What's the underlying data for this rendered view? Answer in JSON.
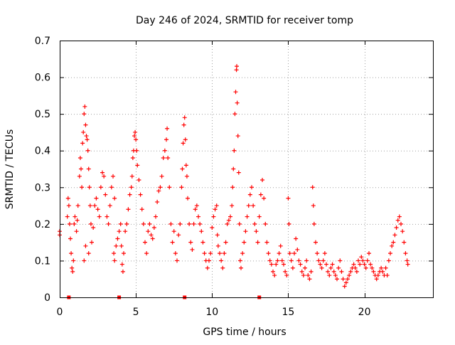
{
  "chart_data": {
    "type": "scatter",
    "title": "Day 246 of 2024, SRMTID for receiver tomp",
    "xlabel": "GPS time / hours",
    "ylabel": "SRMTID / TECUs",
    "xlim": [
      0,
      24.5
    ],
    "ylim": [
      0,
      0.7
    ],
    "x_ticks": [
      0,
      5,
      10,
      15,
      20
    ],
    "y_ticks": [
      0,
      0.1,
      0.2,
      0.3,
      0.4,
      0.5,
      0.6,
      0.7
    ],
    "x_tick_labels": [
      "0",
      "5",
      "10",
      "15",
      "20"
    ],
    "y_tick_labels": [
      "0",
      "0.1",
      "0.2",
      "0.3",
      "0.4",
      "0.5",
      "0.6",
      "0.7"
    ],
    "grid": true,
    "marker": "plus",
    "color": "#ff0000",
    "series": [
      {
        "name": "SRMTID",
        "points": [
          [
            0.0,
            0.18
          ],
          [
            0.0,
            0.17
          ],
          [
            0.5,
            0.22
          ],
          [
            0.55,
            0.27
          ],
          [
            0.6,
            0.25
          ],
          [
            0.65,
            0.2
          ],
          [
            0.7,
            0.16
          ],
          [
            0.75,
            0.12
          ],
          [
            0.8,
            0.08
          ],
          [
            0.85,
            0.07
          ],
          [
            0.9,
            0.1
          ],
          [
            0.95,
            0.2
          ],
          [
            1.0,
            0.22
          ],
          [
            1.1,
            0.18
          ],
          [
            1.15,
            0.21
          ],
          [
            1.2,
            0.25
          ],
          [
            1.3,
            0.33
          ],
          [
            1.35,
            0.38
          ],
          [
            1.4,
            0.35
          ],
          [
            1.45,
            0.3
          ],
          [
            1.5,
            0.42
          ],
          [
            1.55,
            0.45
          ],
          [
            1.6,
            0.5
          ],
          [
            1.65,
            0.52
          ],
          [
            1.7,
            0.47
          ],
          [
            1.75,
            0.44
          ],
          [
            1.8,
            0.43
          ],
          [
            1.85,
            0.4
          ],
          [
            1.9,
            0.35
          ],
          [
            1.95,
            0.3
          ],
          [
            2.0,
            0.25
          ],
          [
            1.6,
            0.1
          ],
          [
            1.7,
            0.14
          ],
          [
            1.9,
            0.12
          ],
          [
            2.05,
            0.2
          ],
          [
            2.1,
            0.15
          ],
          [
            2.2,
            0.19
          ],
          [
            2.3,
            0.25
          ],
          [
            2.4,
            0.27
          ],
          [
            2.5,
            0.24
          ],
          [
            2.6,
            0.22
          ],
          [
            2.7,
            0.3
          ],
          [
            2.8,
            0.34
          ],
          [
            2.9,
            0.33
          ],
          [
            3.0,
            0.28
          ],
          [
            3.1,
            0.22
          ],
          [
            3.2,
            0.2
          ],
          [
            3.3,
            0.25
          ],
          [
            3.4,
            0.3
          ],
          [
            3.5,
            0.33
          ],
          [
            3.6,
            0.27
          ],
          [
            3.55,
            0.12
          ],
          [
            3.6,
            0.1
          ],
          [
            3.7,
            0.14
          ],
          [
            3.8,
            0.16
          ],
          [
            3.9,
            0.18
          ],
          [
            4.0,
            0.2
          ],
          [
            4.05,
            0.14
          ],
          [
            4.1,
            0.09
          ],
          [
            4.15,
            0.07
          ],
          [
            4.2,
            0.12
          ],
          [
            4.3,
            0.18
          ],
          [
            4.4,
            0.2
          ],
          [
            4.5,
            0.24
          ],
          [
            4.6,
            0.28
          ],
          [
            4.7,
            0.3
          ],
          [
            4.75,
            0.33
          ],
          [
            4.8,
            0.38
          ],
          [
            4.85,
            0.4
          ],
          [
            4.9,
            0.44
          ],
          [
            4.95,
            0.45
          ],
          [
            5.0,
            0.43
          ],
          [
            5.05,
            0.4
          ],
          [
            5.1,
            0.36
          ],
          [
            5.2,
            0.32
          ],
          [
            5.3,
            0.28
          ],
          [
            5.4,
            0.24
          ],
          [
            5.5,
            0.2
          ],
          [
            5.6,
            0.15
          ],
          [
            5.7,
            0.12
          ],
          [
            5.8,
            0.18
          ],
          [
            5.9,
            0.2
          ],
          [
            6.0,
            0.17
          ],
          [
            6.1,
            0.16
          ],
          [
            6.2,
            0.19
          ],
          [
            6.3,
            0.22
          ],
          [
            6.4,
            0.26
          ],
          [
            6.5,
            0.29
          ],
          [
            6.6,
            0.3
          ],
          [
            6.7,
            0.33
          ],
          [
            6.8,
            0.38
          ],
          [
            6.9,
            0.4
          ],
          [
            7.0,
            0.43
          ],
          [
            7.05,
            0.46
          ],
          [
            7.1,
            0.38
          ],
          [
            7.2,
            0.3
          ],
          [
            7.3,
            0.2
          ],
          [
            7.4,
            0.15
          ],
          [
            7.5,
            0.18
          ],
          [
            7.6,
            0.12
          ],
          [
            7.7,
            0.1
          ],
          [
            7.8,
            0.17
          ],
          [
            7.9,
            0.2
          ],
          [
            8.0,
            0.3
          ],
          [
            8.05,
            0.35
          ],
          [
            8.1,
            0.42
          ],
          [
            8.15,
            0.47
          ],
          [
            8.2,
            0.49
          ],
          [
            8.25,
            0.43
          ],
          [
            8.3,
            0.36
          ],
          [
            8.35,
            0.33
          ],
          [
            8.4,
            0.27
          ],
          [
            8.5,
            0.2
          ],
          [
            8.6,
            0.15
          ],
          [
            8.7,
            0.13
          ],
          [
            8.8,
            0.2
          ],
          [
            8.9,
            0.24
          ],
          [
            9.0,
            0.25
          ],
          [
            9.1,
            0.22
          ],
          [
            9.2,
            0.2
          ],
          [
            9.3,
            0.18
          ],
          [
            9.4,
            0.15
          ],
          [
            9.5,
            0.12
          ],
          [
            9.6,
            0.1
          ],
          [
            9.7,
            0.08
          ],
          [
            9.8,
            0.1
          ],
          [
            9.9,
            0.12
          ],
          [
            10.0,
            0.19
          ],
          [
            10.1,
            0.22
          ],
          [
            10.2,
            0.24
          ],
          [
            10.3,
            0.25
          ],
          [
            10.35,
            0.17
          ],
          [
            10.4,
            0.14
          ],
          [
            10.5,
            0.12
          ],
          [
            10.6,
            0.1
          ],
          [
            10.7,
            0.08
          ],
          [
            10.8,
            0.12
          ],
          [
            10.9,
            0.15
          ],
          [
            11.0,
            0.2
          ],
          [
            11.1,
            0.21
          ],
          [
            11.2,
            0.22
          ],
          [
            11.3,
            0.25
          ],
          [
            11.35,
            0.3
          ],
          [
            11.4,
            0.35
          ],
          [
            11.45,
            0.4
          ],
          [
            11.5,
            0.5
          ],
          [
            11.55,
            0.56
          ],
          [
            11.6,
            0.62
          ],
          [
            11.62,
            0.63
          ],
          [
            11.65,
            0.53
          ],
          [
            11.7,
            0.44
          ],
          [
            11.75,
            0.34
          ],
          [
            11.8,
            0.2
          ],
          [
            11.85,
            0.1
          ],
          [
            11.9,
            0.08
          ],
          [
            12.0,
            0.12
          ],
          [
            12.1,
            0.15
          ],
          [
            12.2,
            0.18
          ],
          [
            12.3,
            0.22
          ],
          [
            12.4,
            0.25
          ],
          [
            12.5,
            0.28
          ],
          [
            12.6,
            0.3
          ],
          [
            12.7,
            0.25
          ],
          [
            12.8,
            0.2
          ],
          [
            12.9,
            0.18
          ],
          [
            13.0,
            0.15
          ],
          [
            13.1,
            0.22
          ],
          [
            13.2,
            0.28
          ],
          [
            13.3,
            0.32
          ],
          [
            13.4,
            0.27
          ],
          [
            13.5,
            0.2
          ],
          [
            13.6,
            0.15
          ],
          [
            13.7,
            0.12
          ],
          [
            13.8,
            0.1
          ],
          [
            13.9,
            0.09
          ],
          [
            14.0,
            0.07
          ],
          [
            14.1,
            0.06
          ],
          [
            14.2,
            0.09
          ],
          [
            14.3,
            0.1
          ],
          [
            14.4,
            0.12
          ],
          [
            14.5,
            0.14
          ],
          [
            14.6,
            0.1
          ],
          [
            14.7,
            0.09
          ],
          [
            14.8,
            0.07
          ],
          [
            14.9,
            0.06
          ],
          [
            15.0,
            0.27
          ],
          [
            15.05,
            0.2
          ],
          [
            15.1,
            0.12
          ],
          [
            15.2,
            0.1
          ],
          [
            15.3,
            0.08
          ],
          [
            15.4,
            0.12
          ],
          [
            15.5,
            0.16
          ],
          [
            15.6,
            0.13
          ],
          [
            15.7,
            0.1
          ],
          [
            15.8,
            0.09
          ],
          [
            15.9,
            0.07
          ],
          [
            16.0,
            0.06
          ],
          [
            16.1,
            0.08
          ],
          [
            16.2,
            0.1
          ],
          [
            16.3,
            0.06
          ],
          [
            16.4,
            0.05
          ],
          [
            16.5,
            0.07
          ],
          [
            16.6,
            0.3
          ],
          [
            16.65,
            0.25
          ],
          [
            16.7,
            0.2
          ],
          [
            16.8,
            0.15
          ],
          [
            16.9,
            0.12
          ],
          [
            17.0,
            0.1
          ],
          [
            17.1,
            0.09
          ],
          [
            17.2,
            0.08
          ],
          [
            17.3,
            0.1
          ],
          [
            17.4,
            0.12
          ],
          [
            17.5,
            0.09
          ],
          [
            17.6,
            0.07
          ],
          [
            17.7,
            0.06
          ],
          [
            17.8,
            0.08
          ],
          [
            17.9,
            0.09
          ],
          [
            18.0,
            0.07
          ],
          [
            18.1,
            0.06
          ],
          [
            18.2,
            0.05
          ],
          [
            18.3,
            0.08
          ],
          [
            18.4,
            0.1
          ],
          [
            18.5,
            0.07
          ],
          [
            18.6,
            0.05
          ],
          [
            18.7,
            0.03
          ],
          [
            18.8,
            0.04
          ],
          [
            18.9,
            0.05
          ],
          [
            19.0,
            0.06
          ],
          [
            19.1,
            0.07
          ],
          [
            19.2,
            0.08
          ],
          [
            19.3,
            0.09
          ],
          [
            19.4,
            0.08
          ],
          [
            19.5,
            0.07
          ],
          [
            19.6,
            0.1
          ],
          [
            19.7,
            0.09
          ],
          [
            19.8,
            0.11
          ],
          [
            19.9,
            0.1
          ],
          [
            20.0,
            0.09
          ],
          [
            20.1,
            0.08
          ],
          [
            20.2,
            0.1
          ],
          [
            20.3,
            0.12
          ],
          [
            20.4,
            0.09
          ],
          [
            20.5,
            0.08
          ],
          [
            20.6,
            0.07
          ],
          [
            20.7,
            0.06
          ],
          [
            20.8,
            0.05
          ],
          [
            20.9,
            0.06
          ],
          [
            21.0,
            0.07
          ],
          [
            21.1,
            0.08
          ],
          [
            21.2,
            0.07
          ],
          [
            21.3,
            0.06
          ],
          [
            21.4,
            0.08
          ],
          [
            21.5,
            0.06
          ],
          [
            21.6,
            0.1
          ],
          [
            21.7,
            0.12
          ],
          [
            21.8,
            0.14
          ],
          [
            21.9,
            0.15
          ],
          [
            22.0,
            0.17
          ],
          [
            22.1,
            0.19
          ],
          [
            22.2,
            0.21
          ],
          [
            22.3,
            0.22
          ],
          [
            22.4,
            0.2
          ],
          [
            22.5,
            0.18
          ],
          [
            22.6,
            0.15
          ],
          [
            22.7,
            0.12
          ],
          [
            22.8,
            0.1
          ],
          [
            22.85,
            0.09
          ]
        ]
      }
    ],
    "gap_markers_x": [
      0.6,
      3.9,
      8.2,
      13.1
    ]
  }
}
